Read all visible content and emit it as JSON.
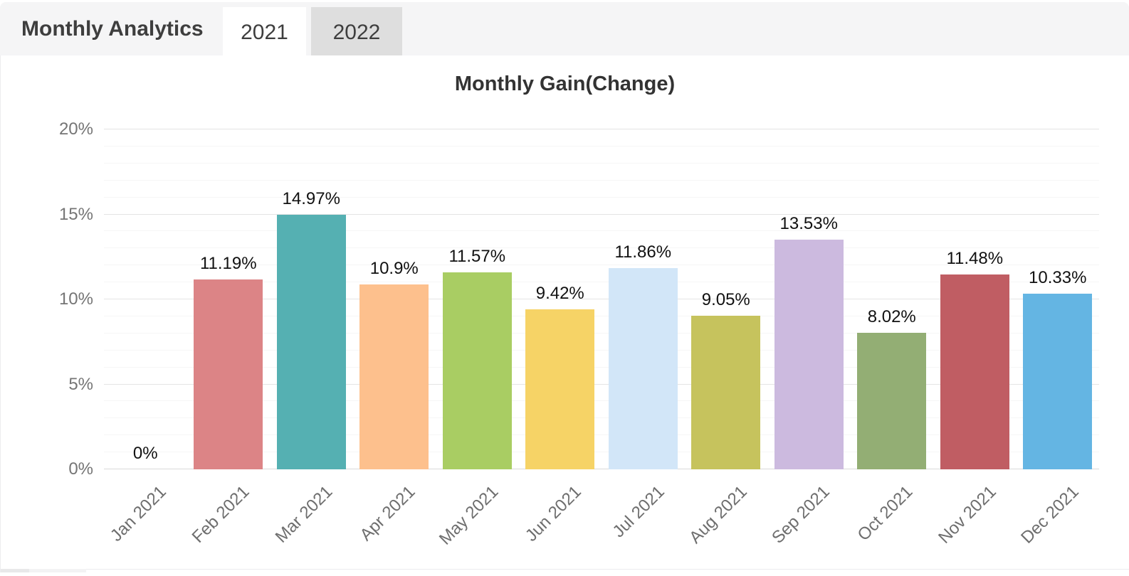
{
  "header": {
    "title": "Monthly Analytics",
    "tabs": [
      {
        "label": "2021",
        "active": true
      },
      {
        "label": "2022",
        "active": false
      }
    ]
  },
  "chart_data": {
    "type": "bar",
    "title": "Monthly Gain(Change)",
    "categories": [
      "Jan 2021",
      "Feb 2021",
      "Mar 2021",
      "Apr 2021",
      "May 2021",
      "Jun 2021",
      "Jul 2021",
      "Aug 2021",
      "Sep 2021",
      "Oct 2021",
      "Nov 2021",
      "Dec 2021"
    ],
    "values": [
      0,
      11.19,
      14.97,
      10.9,
      11.57,
      9.42,
      11.86,
      9.05,
      13.53,
      8.02,
      11.48,
      10.33
    ],
    "labels": [
      "0%",
      "11.19%",
      "14.97%",
      "10.9%",
      "11.57%",
      "9.42%",
      "11.86%",
      "9.05%",
      "13.53%",
      "8.02%",
      "11.48%",
      "10.33%"
    ],
    "bar_colors": [
      null,
      "#dc8486",
      "#55b0b2",
      "#fdc08d",
      "#a9cd63",
      "#f6d366",
      "#d2e6f8",
      "#c6c35d",
      "#ccbadf",
      "#93ae74",
      "#c05d63",
      "#64b5e3"
    ],
    "xlabel": "",
    "ylabel": "",
    "ylim": [
      0,
      20
    ],
    "y_ticks": [
      0,
      5,
      10,
      15,
      20
    ],
    "y_tick_labels": [
      "0%",
      "5%",
      "10%",
      "15%",
      "20%"
    ],
    "grid": {
      "major_step_pct": 5,
      "minor_step_pct": 1,
      "legend": "none"
    }
  }
}
